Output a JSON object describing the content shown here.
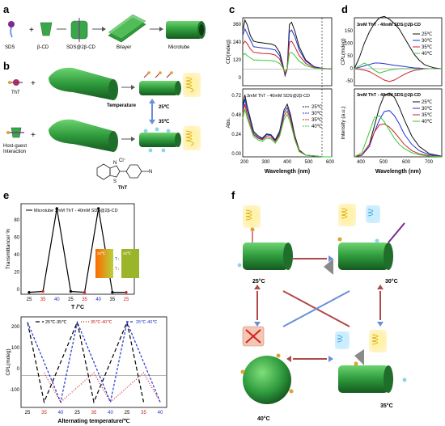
{
  "panels": {
    "a": {
      "letter": "a",
      "labels": [
        "SDS",
        "β-CD",
        "SDS@2β-CD",
        "Bilayer",
        "Microtube"
      ]
    },
    "b": {
      "letter": "b",
      "tht_label": "ThT",
      "temperature_label": "Temperature",
      "t_high": "25℃",
      "t_low": "35℃",
      "host_guest_label": "Host-guest\nInteraction",
      "host_guest_line1": "Host-guest",
      "host_guest_line2": "Interaction",
      "molecule_label": "ThT",
      "chloride": "Cl⁻"
    },
    "c": {
      "letter": "c",
      "title_bottom": "3mM ThT - 40mM SDS@2β-CD",
      "ylabel_top": "CD(mdeg)",
      "ylabel_bottom": "Abs.",
      "xlabel": "Wavelength (nm)",
      "yticks_top": [
        "360",
        "240",
        "120",
        "0"
      ],
      "yticks_bottom": [
        "0.72",
        "0.48",
        "0.24",
        "0.00"
      ],
      "xticks": [
        "200",
        "300",
        "400",
        "500",
        "600"
      ]
    },
    "d": {
      "letter": "d",
      "title_top": "3mM ThT - 40mM SDS@2β-CD",
      "title_bottom": "3mM ThT - 40mM SDS@2β-CD",
      "ylabel_top": "CPL(mdeg)",
      "ylabel_bottom": "Intensity (a.u.)",
      "xlabel": "Wavelength (nm)",
      "yticks_top": [
        "150",
        "100",
        "50",
        "0",
        "-50"
      ],
      "xticks": [
        "400",
        "500",
        "600",
        "700"
      ]
    },
    "e": {
      "letter": "e",
      "legend": "Microtube 3mM ThT - 40mM SDS@2β-CD",
      "ylabel_top": "Transmittance/ %",
      "xlabel_top": "T /°C",
      "ylabel_bottom": "CPL(mdeg)",
      "xlabel_bottom": "Alternating temperature/℃",
      "yticks_top": [
        "80",
        "60",
        "40",
        "20",
        "0"
      ],
      "xticks_top": [
        "25",
        "35",
        "40",
        "25",
        "35",
        "40",
        "35",
        "25"
      ],
      "yticks_bottom": [
        "200",
        "100",
        "0",
        "-100"
      ],
      "xticks_bottom": [
        "25",
        "35",
        "40",
        "25",
        "35",
        "40",
        "25",
        "35",
        "40"
      ],
      "legend_bottom": [
        "25℃-35℃",
        "35℃-40℃",
        "25℃-40℃"
      ],
      "inset_left": "25℃",
      "inset_right": "40℃",
      "inset_up": "T↑",
      "inset_down": "T↓"
    },
    "f": {
      "letter": "f",
      "states": [
        "25°C",
        "30°C",
        "40°C",
        "35°C"
      ]
    }
  },
  "temperatures": [
    "25℃",
    "30℃",
    "35℃",
    "40℃"
  ],
  "colors": {
    "25": "#111111",
    "30": "#2233cc",
    "35": "#cc2222",
    "40": "#33cc33",
    "tube": "#3aa64a",
    "tube_dark": "#1f6e2a"
  },
  "chart_data": [
    {
      "panel": "c-top",
      "type": "line",
      "ylabel": "CD(mdeg)",
      "xlabel": "Wavelength (nm)",
      "xlim": [
        190,
        600
      ],
      "ylim": [
        -150,
        460
      ],
      "x": [
        190,
        200,
        210,
        225,
        240,
        260,
        280,
        300,
        320,
        340,
        360,
        375,
        385,
        395,
        405,
        415,
        430,
        450,
        480,
        520,
        560,
        600
      ],
      "series": [
        {
          "name": "25℃",
          "values": [
            340,
            440,
            400,
            300,
            250,
            240,
            235,
            230,
            225,
            210,
            150,
            40,
            -60,
            0,
            400,
            420,
            340,
            200,
            80,
            20,
            5,
            0
          ]
        },
        {
          "name": "30℃",
          "values": [
            300,
            360,
            320,
            260,
            200,
            195,
            190,
            185,
            180,
            170,
            120,
            30,
            -50,
            0,
            330,
            350,
            290,
            170,
            70,
            20,
            5,
            0
          ]
        },
        {
          "name": "35℃",
          "values": [
            220,
            250,
            230,
            180,
            150,
            145,
            140,
            138,
            135,
            125,
            90,
            20,
            -40,
            0,
            240,
            250,
            200,
            120,
            50,
            12,
            3,
            0
          ]
        },
        {
          "name": "40℃",
          "values": [
            120,
            140,
            120,
            100,
            80,
            80,
            78,
            77,
            75,
            70,
            50,
            10,
            -20,
            0,
            140,
            150,
            120,
            70,
            30,
            8,
            2,
            0
          ]
        }
      ]
    },
    {
      "panel": "c-bottom",
      "type": "line",
      "title": "3mM ThT - 40mM SDS@2β-CD",
      "ylabel": "Abs.",
      "xlabel": "Wavelength (nm)",
      "xlim": [
        190,
        600
      ],
      "ylim": [
        0,
        0.8
      ],
      "x": [
        190,
        200,
        210,
        225,
        240,
        260,
        280,
        300,
        320,
        340,
        360,
        380,
        395,
        410,
        430,
        450,
        480,
        520,
        560,
        600
      ],
      "series": [
        {
          "name": "25℃",
          "values": [
            0.6,
            0.73,
            0.6,
            0.45,
            0.3,
            0.25,
            0.22,
            0.27,
            0.26,
            0.2,
            0.3,
            0.55,
            0.62,
            0.5,
            0.25,
            0.08,
            0.02,
            0.01,
            0.0,
            0.0
          ]
        },
        {
          "name": "30℃",
          "values": [
            0.55,
            0.68,
            0.55,
            0.42,
            0.28,
            0.23,
            0.21,
            0.26,
            0.25,
            0.19,
            0.28,
            0.52,
            0.58,
            0.47,
            0.23,
            0.07,
            0.02,
            0.01,
            0.0,
            0.0
          ]
        },
        {
          "name": "35℃",
          "values": [
            0.5,
            0.62,
            0.5,
            0.38,
            0.26,
            0.22,
            0.2,
            0.24,
            0.23,
            0.18,
            0.26,
            0.48,
            0.54,
            0.44,
            0.22,
            0.07,
            0.02,
            0.01,
            0.0,
            0.0
          ]
        },
        {
          "name": "40℃",
          "values": [
            0.45,
            0.56,
            0.46,
            0.35,
            0.24,
            0.2,
            0.18,
            0.22,
            0.21,
            0.16,
            0.24,
            0.44,
            0.5,
            0.4,
            0.2,
            0.06,
            0.02,
            0.01,
            0.0,
            0.0
          ]
        }
      ]
    },
    {
      "panel": "d-top",
      "type": "line",
      "title": "3mM ThT - 40mM SDS@2β-CD",
      "ylabel": "CPL(mdeg)",
      "xlabel": "Wavelength (nm)",
      "xlim": [
        400,
        750
      ],
      "ylim": [
        -60,
        180
      ],
      "x": [
        400,
        420,
        440,
        460,
        480,
        500,
        520,
        540,
        560,
        580,
        600,
        620,
        640,
        660,
        680,
        700,
        720,
        750
      ],
      "series": [
        {
          "name": "25℃",
          "values": [
            0,
            40,
            90,
            130,
            160,
            180,
            185,
            175,
            160,
            140,
            110,
            80,
            50,
            30,
            15,
            8,
            3,
            0
          ]
        },
        {
          "name": "30℃",
          "values": [
            0,
            5,
            10,
            15,
            20,
            20,
            18,
            15,
            12,
            10,
            8,
            5,
            3,
            2,
            1,
            0,
            0,
            0
          ]
        },
        {
          "name": "35℃",
          "values": [
            0,
            -2,
            -5,
            -10,
            -20,
            -30,
            -40,
            -45,
            -40,
            -30,
            -20,
            -12,
            -6,
            -3,
            -1,
            0,
            0,
            0
          ]
        },
        {
          "name": "40℃",
          "values": [
            0,
            10,
            20,
            10,
            -5,
            -15,
            -10,
            -5,
            -2,
            0,
            0,
            0,
            0,
            0,
            0,
            0,
            0,
            0
          ]
        }
      ]
    },
    {
      "panel": "d-bottom",
      "type": "line",
      "title": "3mM ThT - 40mM SDS@2β-CD",
      "ylabel": "Intensity (a.u.)",
      "xlabel": "Wavelength (nm)",
      "xlim": [
        400,
        750
      ],
      "ylim": [
        0,
        330
      ],
      "x": [
        400,
        430,
        460,
        480,
        500,
        520,
        540,
        560,
        580,
        600,
        630,
        660,
        700,
        750
      ],
      "series": [
        {
          "name": "25℃",
          "values": [
            0,
            10,
            60,
            150,
            240,
            300,
            310,
            290,
            240,
            180,
            100,
            50,
            15,
            3
          ]
        },
        {
          "name": "30℃",
          "values": [
            0,
            8,
            50,
            120,
            180,
            220,
            225,
            200,
            160,
            110,
            60,
            30,
            10,
            2
          ]
        },
        {
          "name": "35℃",
          "values": [
            0,
            10,
            60,
            120,
            155,
            160,
            145,
            120,
            90,
            60,
            30,
            15,
            5,
            1
          ]
        },
        {
          "name": "40℃",
          "values": [
            0,
            20,
            120,
            190,
            200,
            170,
            130,
            90,
            60,
            40,
            20,
            10,
            3,
            1
          ]
        }
      ]
    },
    {
      "panel": "e-top",
      "type": "line",
      "ylabel": "Transmittance/ %",
      "xlabel": "T /°C",
      "ylim": [
        0,
        95
      ],
      "categories": [
        "25",
        "35",
        "40",
        "25",
        "35",
        "40",
        "35",
        "25"
      ],
      "series": [
        {
          "name": "Microtube 3mM ThT - 40mM SDS@2β-CD",
          "values": [
            2,
            3,
            90,
            3,
            2,
            90,
            2,
            2
          ]
        }
      ]
    },
    {
      "panel": "e-bottom",
      "type": "line",
      "ylabel": "CPL(mdeg)",
      "xlabel": "Alternating temperature/℃",
      "ylim": [
        -120,
        220
      ],
      "categories": [
        "25",
        "35",
        "40",
        "25",
        "35",
        "40",
        "25",
        "35",
        "40"
      ],
      "series": [
        {
          "name": "25℃-35℃",
          "values": [
            200,
            -100,
            null,
            200,
            -100,
            null,
            200,
            -100,
            null
          ]
        },
        {
          "name": "35℃-40℃",
          "values": [
            null,
            10,
            -100,
            null,
            10,
            -100,
            null,
            10,
            -100
          ]
        },
        {
          "name": "25℃-40℃",
          "values": [
            200,
            null,
            -100,
            200,
            null,
            -100,
            200,
            null,
            -100
          ]
        }
      ]
    }
  ]
}
